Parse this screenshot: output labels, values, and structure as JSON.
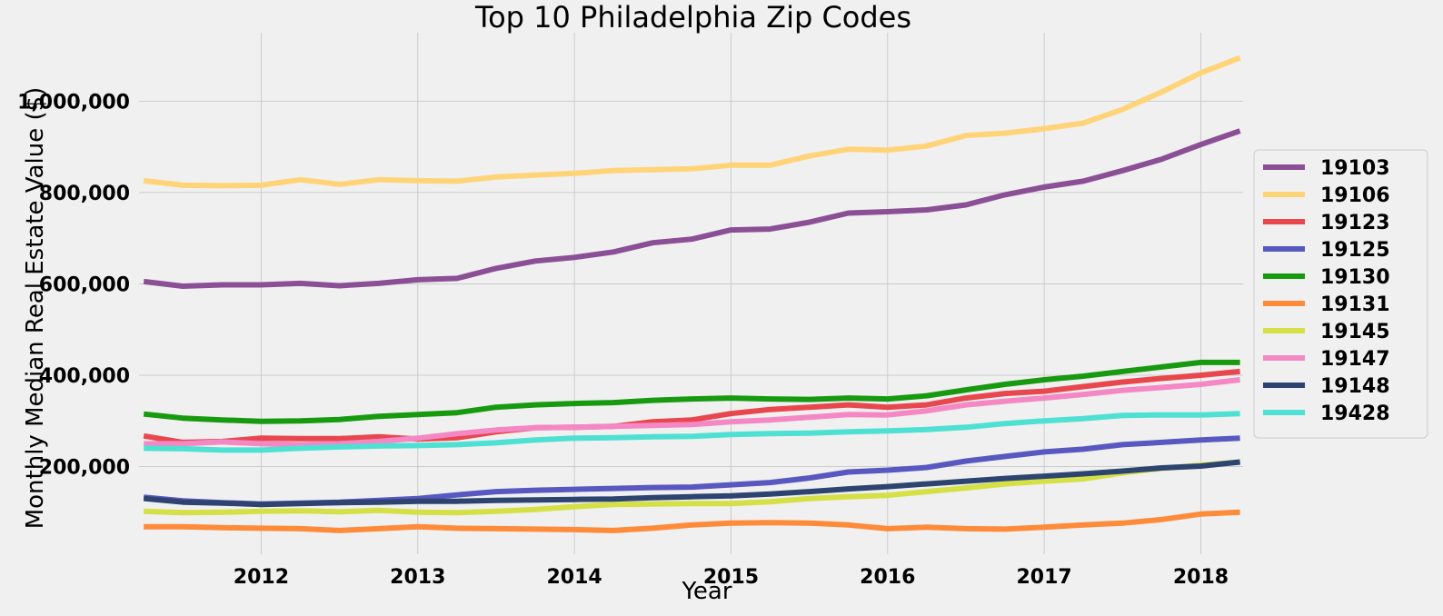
{
  "chart_data": {
    "type": "line",
    "title": "Top 10 Philadelphia Zip Codes",
    "xlabel": "Year",
    "ylabel": "Monthly Median Real Estate Value ($)",
    "xlim": [
      2011.22,
      2018.27
    ],
    "ylim": [
      8000,
      1150000
    ],
    "x_ticks": [
      2012,
      2013,
      2014,
      2015,
      2016,
      2017,
      2018
    ],
    "x_tick_labels": [
      "2012",
      "2013",
      "2014",
      "2015",
      "2016",
      "2017",
      "2018"
    ],
    "y_ticks": [
      200000,
      400000,
      600000,
      800000,
      1000000
    ],
    "y_tick_labels": [
      "200,000",
      "400,000",
      "600,000",
      "800,000",
      "1,000,000"
    ],
    "grid": true,
    "legend_position": "right",
    "x": [
      2011.25,
      2011.5,
      2011.75,
      2012.0,
      2012.25,
      2012.5,
      2012.75,
      2013.0,
      2013.25,
      2013.5,
      2013.75,
      2014.0,
      2014.25,
      2014.5,
      2014.75,
      2015.0,
      2015.25,
      2015.5,
      2015.75,
      2016.0,
      2016.25,
      2016.5,
      2016.75,
      2017.0,
      2017.25,
      2017.5,
      2017.75,
      2018.0,
      2018.25
    ],
    "series": [
      {
        "name": "19103",
        "color": "#8b4f95",
        "values": [
          605000,
          595000,
          598000,
          598000,
          601000,
          596000,
          601000,
          609000,
          612000,
          634000,
          650000,
          658000,
          670000,
          690000,
          698000,
          718000,
          720000,
          735000,
          755000,
          758000,
          762000,
          773000,
          795000,
          812000,
          825000,
          848000,
          873000,
          905000,
          935000
        ]
      },
      {
        "name": "19106",
        "color": "#ffd479",
        "values": [
          826000,
          816000,
          815000,
          816000,
          828000,
          818000,
          828000,
          826000,
          825000,
          834000,
          838000,
          842000,
          848000,
          850000,
          852000,
          860000,
          860000,
          880000,
          895000,
          893000,
          902000,
          925000,
          930000,
          940000,
          952000,
          982000,
          1020000,
          1062000,
          1095000
        ]
      },
      {
        "name": "19123",
        "color": "#e8474e",
        "values": [
          267000,
          253000,
          255000,
          262000,
          261000,
          261000,
          265000,
          260000,
          263000,
          276000,
          285000,
          286000,
          288000,
          298000,
          302000,
          316000,
          325000,
          330000,
          335000,
          330000,
          335000,
          350000,
          360000,
          365000,
          375000,
          385000,
          393000,
          400000,
          408000
        ]
      },
      {
        "name": "19125",
        "color": "#5858c0",
        "values": [
          133000,
          125000,
          121000,
          118000,
          120000,
          122000,
          126000,
          130000,
          138000,
          145000,
          148000,
          150000,
          152000,
          154000,
          155000,
          160000,
          165000,
          175000,
          188000,
          192000,
          198000,
          212000,
          222000,
          232000,
          238000,
          248000,
          253000,
          258000,
          262000
        ]
      },
      {
        "name": "19130",
        "color": "#189a10",
        "values": [
          315000,
          306000,
          302000,
          299000,
          300000,
          303000,
          310000,
          314000,
          318000,
          330000,
          335000,
          338000,
          340000,
          345000,
          348000,
          350000,
          348000,
          347000,
          350000,
          348000,
          355000,
          368000,
          380000,
          390000,
          398000,
          408000,
          418000,
          428000,
          428000
        ]
      },
      {
        "name": "19131",
        "color": "#fd8b3a",
        "values": [
          68000,
          68000,
          66000,
          65000,
          64000,
          60000,
          64000,
          68000,
          65000,
          64000,
          63000,
          62000,
          60000,
          65000,
          72000,
          76000,
          77000,
          76000,
          72000,
          64000,
          67000,
          64000,
          63000,
          67000,
          72000,
          76000,
          84000,
          96000,
          100000
        ]
      },
      {
        "name": "19145",
        "color": "#d4e046",
        "values": [
          102000,
          99000,
          100000,
          102000,
          103000,
          101000,
          104000,
          100000,
          99000,
          102000,
          106000,
          112000,
          117000,
          118000,
          119000,
          119000,
          123000,
          130000,
          134000,
          137000,
          145000,
          153000,
          162000,
          168000,
          173000,
          186000,
          196000,
          203000,
          210000
        ]
      },
      {
        "name": "19147",
        "color": "#f488c5",
        "values": [
          250000,
          250000,
          254000,
          250000,
          248000,
          250000,
          255000,
          262000,
          272000,
          280000,
          285000,
          286000,
          288000,
          290000,
          292000,
          298000,
          302000,
          308000,
          314000,
          313000,
          322000,
          335000,
          343000,
          350000,
          358000,
          367000,
          373000,
          380000,
          390000
        ]
      },
      {
        "name": "19148",
        "color": "#2e4470",
        "values": [
          130000,
          122000,
          120000,
          117000,
          119000,
          121000,
          122000,
          124000,
          124000,
          126000,
          127000,
          128000,
          129000,
          132000,
          134000,
          136000,
          140000,
          145000,
          151000,
          156000,
          162000,
          168000,
          174000,
          179000,
          184000,
          190000,
          197000,
          201000,
          210000
        ]
      },
      {
        "name": "19428",
        "color": "#4ee0d2",
        "values": [
          240000,
          239000,
          236000,
          236000,
          240000,
          243000,
          245000,
          246000,
          248000,
          252000,
          258000,
          262000,
          263000,
          265000,
          266000,
          270000,
          272000,
          273000,
          276000,
          278000,
          281000,
          286000,
          294000,
          300000,
          305000,
          312000,
          313000,
          313000,
          316000
        ]
      }
    ]
  }
}
